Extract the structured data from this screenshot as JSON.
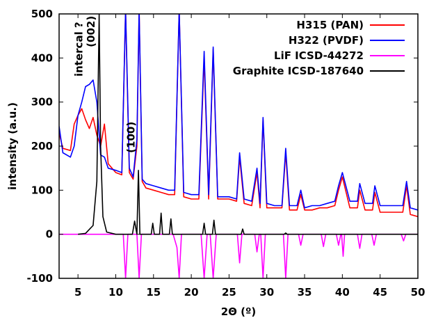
{
  "chart_data": {
    "type": "line",
    "xlabel": "2Θ (º)",
    "ylabel": "intensity (a.u.)",
    "xlim": [
      2.5,
      50
    ],
    "ylim": [
      -100,
      500
    ],
    "xticks": [
      5,
      10,
      15,
      20,
      25,
      30,
      35,
      40,
      45,
      50
    ],
    "yticks": [
      -100,
      0,
      100,
      200,
      300,
      400,
      500
    ],
    "legend_position": "top-right",
    "annotations": [
      {
        "text": "intercal ?",
        "x": 5.6,
        "y": 420
      },
      {
        "text": "(002)",
        "x": 7.2,
        "y": 460
      },
      {
        "text": "(100)",
        "x": 12.5,
        "y": 220
      }
    ],
    "series": [
      {
        "name": "H315 (PAN)",
        "color": "#ff0000",
        "x": [
          2.5,
          3,
          4,
          4.5,
          5,
          5.5,
          6,
          6.5,
          7,
          7.5,
          8,
          8.5,
          9,
          10,
          10.8,
          11.3,
          11.8,
          12.3,
          12.8,
          13.1,
          13.5,
          14,
          15,
          16,
          17,
          17.8,
          18.4,
          19,
          20,
          21,
          21.7,
          22.3,
          22.9,
          23.5,
          24,
          25,
          26,
          26.4,
          27,
          28,
          28.7,
          29.1,
          29.5,
          30,
          31,
          32,
          32.5,
          33,
          34,
          34.5,
          35,
          36,
          37,
          38,
          39,
          39.5,
          40,
          41,
          42,
          42.3,
          43,
          44,
          44.3,
          45,
          46,
          47,
          48,
          48.5,
          49,
          50
        ],
        "values": [
          230,
          195,
          190,
          250,
          270,
          285,
          260,
          240,
          265,
          225,
          200,
          250,
          160,
          140,
          135,
          510,
          140,
          125,
          200,
          510,
          120,
          105,
          100,
          95,
          90,
          90,
          510,
          85,
          80,
          80,
          400,
          80,
          420,
          80,
          80,
          80,
          75,
          175,
          70,
          65,
          140,
          60,
          260,
          60,
          60,
          60,
          185,
          55,
          55,
          90,
          55,
          55,
          60,
          60,
          65,
          100,
          130,
          60,
          60,
          100,
          55,
          55,
          95,
          50,
          50,
          50,
          50,
          110,
          45,
          40
        ]
      },
      {
        "name": "H322 (PVDF)",
        "color": "#0000ff",
        "x": [
          2.5,
          3,
          4,
          4.5,
          5,
          5.5,
          6,
          6.5,
          7,
          7.5,
          8,
          8.5,
          9,
          10,
          10.8,
          11.3,
          11.8,
          12.3,
          12.8,
          13.1,
          13.5,
          14,
          15,
          16,
          17,
          17.8,
          18.4,
          19,
          20,
          21,
          21.7,
          22.3,
          22.9,
          23.5,
          24,
          25,
          26,
          26.4,
          27,
          28,
          28.7,
          29.1,
          29.5,
          30,
          31,
          32,
          32.5,
          33,
          34,
          34.5,
          35,
          36,
          37,
          38,
          39,
          39.5,
          40,
          41,
          42,
          42.3,
          43,
          44,
          44.3,
          45,
          46,
          47,
          48,
          48.5,
          49,
          50
        ],
        "values": [
          245,
          185,
          175,
          200,
          270,
          300,
          335,
          340,
          350,
          300,
          180,
          175,
          150,
          145,
          140,
          510,
          150,
          130,
          215,
          510,
          125,
          115,
          110,
          105,
          100,
          100,
          510,
          95,
          90,
          90,
          415,
          90,
          425,
          85,
          85,
          85,
          80,
          185,
          80,
          75,
          150,
          70,
          265,
          70,
          65,
          65,
          195,
          65,
          65,
          100,
          60,
          65,
          65,
          70,
          75,
          110,
          140,
          75,
          75,
          115,
          70,
          70,
          110,
          65,
          65,
          65,
          65,
          120,
          60,
          55
        ]
      },
      {
        "name": "LiF ICSD-44272",
        "color": "#ff00ff",
        "x": [
          2.5,
          11,
          11.3,
          11.6,
          12.8,
          13.1,
          13.4,
          17.6,
          18.1,
          18.4,
          18.7,
          21.3,
          21.7,
          22.1,
          22.5,
          22.9,
          23.3,
          26.1,
          26.4,
          26.7,
          28.4,
          28.7,
          29.0,
          29.2,
          29.5,
          29.8,
          32.2,
          32.5,
          32.8,
          34.2,
          34.5,
          34.8,
          37.2,
          37.5,
          37.8,
          39.2,
          39.5,
          39.8,
          39.9,
          40.1,
          40.3,
          42.0,
          42.3,
          42.6,
          43.9,
          44.2,
          44.5,
          47.8,
          48.1,
          48.4,
          50
        ],
        "values": [
          0,
          0,
          -100,
          0,
          0,
          -100,
          0,
          0,
          -30,
          -100,
          0,
          0,
          -100,
          0,
          0,
          -100,
          0,
          0,
          -65,
          0,
          0,
          -40,
          0,
          0,
          -100,
          0,
          0,
          -100,
          0,
          0,
          -25,
          0,
          0,
          -28,
          0,
          0,
          -25,
          0,
          0,
          -50,
          0,
          0,
          -32,
          0,
          0,
          -25,
          0,
          0,
          -15,
          0,
          0
        ]
      },
      {
        "name": "Graphite ICSD-187640",
        "color": "#000000",
        "x": [
          5,
          6,
          7,
          7.5,
          7.8,
          8.0,
          8.3,
          8.8,
          10,
          12.2,
          12.5,
          12.8,
          13.0,
          13.2,
          13.5,
          14.7,
          14.9,
          15.1,
          15.8,
          16.0,
          16.2,
          17.1,
          17.3,
          17.5,
          21.5,
          21.7,
          21.9,
          22.8,
          23.0,
          23.2,
          26.6,
          26.8,
          27.0,
          32.3,
          32.5,
          32.7,
          50
        ],
        "values": [
          0,
          2,
          20,
          120,
          500,
          200,
          40,
          5,
          0,
          0,
          30,
          0,
          145,
          0,
          0,
          0,
          25,
          0,
          0,
          48,
          0,
          0,
          35,
          0,
          0,
          25,
          0,
          0,
          32,
          0,
          0,
          12,
          0,
          0,
          3,
          0,
          0
        ]
      }
    ]
  }
}
